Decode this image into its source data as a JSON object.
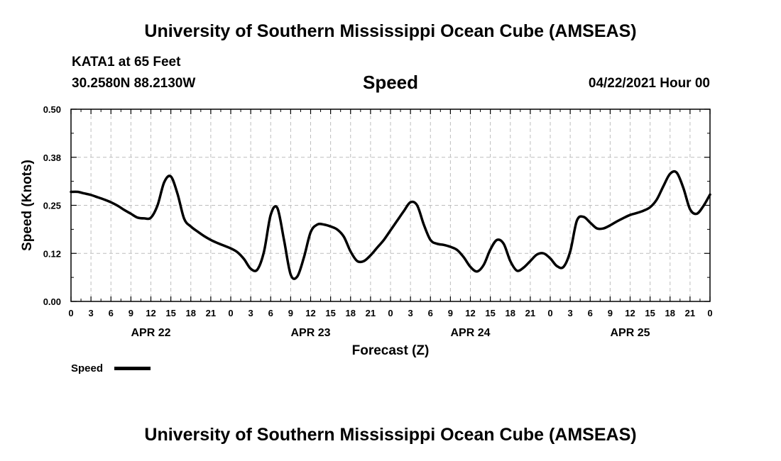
{
  "header": {
    "top_title": "University of Southern Mississippi Ocean Cube (AMSEAS)",
    "station": "KATA1 at 65 Feet",
    "coords": "30.2580N  88.2130W",
    "datetime": "04/22/2021 Hour 00",
    "bottom_title": "University of Southern Mississippi Ocean Cube (AMSEAS)"
  },
  "chart_data": {
    "type": "line",
    "title": "Speed",
    "xlabel": "Forecast (Z)",
    "ylabel": "Speed (Knots)",
    "ylim": [
      0,
      0.5
    ],
    "xlim": [
      0,
      96
    ],
    "y_ticks": [
      0.0,
      0.125,
      0.25,
      0.375,
      0.5
    ],
    "y_tick_labels": [
      "0.00",
      "0.12",
      "0.25",
      "0.38",
      "0.50"
    ],
    "x_ticks": [
      0,
      3,
      6,
      9,
      12,
      15,
      18,
      21,
      24,
      27,
      30,
      33,
      36,
      39,
      42,
      45,
      48,
      51,
      54,
      57,
      60,
      63,
      66,
      69,
      72,
      75,
      78,
      81,
      84,
      87,
      90,
      93,
      96
    ],
    "x_tick_labels": [
      "0",
      "3",
      "6",
      "9",
      "12",
      "15",
      "18",
      "21",
      "0",
      "3",
      "6",
      "9",
      "12",
      "15",
      "18",
      "21",
      "0",
      "3",
      "6",
      "9",
      "12",
      "15",
      "18",
      "21",
      "0",
      "3",
      "6",
      "9",
      "12",
      "15",
      "18",
      "21",
      "0"
    ],
    "day_labels": [
      {
        "label": "APR 22",
        "x": 12
      },
      {
        "label": "APR 23",
        "x": 36
      },
      {
        "label": "APR 24",
        "x": 60
      },
      {
        "label": "APR 25",
        "x": 84
      }
    ],
    "grid": true,
    "legend": {
      "position": "bottom-left",
      "entries": [
        "Speed"
      ]
    },
    "series": [
      {
        "name": "Speed",
        "color": "#000000",
        "x": [
          0,
          1,
          2,
          3,
          4,
          5,
          6,
          7,
          8,
          9,
          10,
          11,
          12,
          13,
          14,
          15,
          16,
          17,
          18,
          19,
          20,
          21,
          22,
          23,
          24,
          25,
          26,
          27,
          28,
          29,
          30,
          31,
          32,
          33,
          34,
          35,
          36,
          37,
          38,
          39,
          40,
          41,
          42,
          43,
          44,
          45,
          46,
          47,
          48,
          49,
          50,
          51,
          52,
          53,
          54,
          55,
          56,
          57,
          58,
          59,
          60,
          61,
          62,
          63,
          64,
          65,
          66,
          67,
          68,
          69,
          70,
          71,
          72,
          73,
          74,
          75,
          76,
          77,
          78,
          79,
          80,
          81,
          82,
          83,
          84,
          85,
          86,
          87,
          88,
          89,
          90,
          91,
          92,
          93,
          94,
          95,
          96
        ],
        "values": [
          0.285,
          0.285,
          0.281,
          0.277,
          0.271,
          0.265,
          0.258,
          0.249,
          0.238,
          0.228,
          0.218,
          0.216,
          0.218,
          0.25,
          0.31,
          0.325,
          0.28,
          0.215,
          0.195,
          0.182,
          0.17,
          0.16,
          0.152,
          0.145,
          0.138,
          0.128,
          0.11,
          0.085,
          0.083,
          0.13,
          0.225,
          0.243,
          0.16,
          0.07,
          0.065,
          0.115,
          0.18,
          0.2,
          0.2,
          0.195,
          0.187,
          0.168,
          0.13,
          0.105,
          0.105,
          0.12,
          0.14,
          0.16,
          0.185,
          0.21,
          0.235,
          0.258,
          0.25,
          0.2,
          0.16,
          0.15,
          0.147,
          0.142,
          0.134,
          0.115,
          0.09,
          0.078,
          0.095,
          0.135,
          0.16,
          0.15,
          0.105,
          0.08,
          0.088,
          0.105,
          0.122,
          0.125,
          0.112,
          0.092,
          0.09,
          0.13,
          0.21,
          0.22,
          0.205,
          0.19,
          0.19,
          0.198,
          0.208,
          0.217,
          0.225,
          0.23,
          0.236,
          0.245,
          0.265,
          0.3,
          0.332,
          0.335,
          0.295,
          0.24,
          0.228,
          0.248,
          0.278
        ]
      }
    ]
  }
}
